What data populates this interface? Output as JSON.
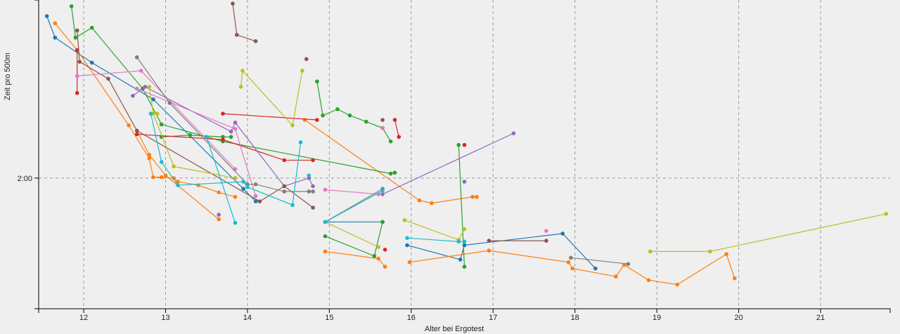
{
  "chart_data": {
    "type": "line",
    "xlabel": "Alter bei Ergotest",
    "ylabel": "Zeit pro 500m",
    "xlim": [
      11.45,
      21.85
    ],
    "ylim": [
      105.4,
      139.9
    ],
    "x_ticks": [
      12,
      13,
      14,
      15,
      16,
      17,
      18,
      19,
      20,
      21
    ],
    "y_ticks": [
      {
        "value": 120,
        "label": "2:00"
      }
    ],
    "grid": "dashed at tick positions",
    "series": [
      {
        "color": "#1f77b4",
        "points": [
          [
            11.55,
            138.1
          ],
          [
            11.65,
            135.7
          ],
          [
            12.1,
            132.9
          ],
          [
            12.85,
            128.8
          ],
          [
            13.95,
            118.8
          ],
          [
            14.1,
            117.4
          ]
        ]
      },
      {
        "color": "#1f77b4",
        "points": [
          [
            14.95,
            115.1
          ],
          [
            15.65,
            115.1
          ]
        ]
      },
      {
        "color": "#1f77b4",
        "points": [
          [
            15.95,
            112.5
          ],
          [
            16.6,
            110.9
          ],
          [
            16.65,
            112.5
          ],
          [
            17.85,
            113.8
          ],
          [
            18.25,
            109.9
          ]
        ]
      },
      {
        "color": "#ff7f0e",
        "points": [
          [
            11.65,
            137.3
          ],
          [
            11.92,
            134.3
          ],
          [
            12.55,
            125.9
          ],
          [
            12.8,
            122.2
          ],
          [
            12.85,
            120.1
          ],
          [
            12.95,
            120.1
          ],
          [
            13.1,
            120.0
          ],
          [
            13.15,
            119.6
          ],
          [
            13.4,
            119.2
          ],
          [
            13.65,
            118.4
          ],
          [
            13.85,
            117.9
          ]
        ]
      },
      {
        "color": "#ff7f0e",
        "points": [
          [
            12.65,
            125.3
          ],
          [
            12.8,
            122.6
          ],
          [
            13.0,
            120.3
          ],
          [
            13.65,
            115.4
          ]
        ]
      },
      {
        "color": "#ff7f0e",
        "points": [
          [
            14.7,
            126.5
          ],
          [
            16.1,
            117.5
          ],
          [
            16.25,
            117.2
          ],
          [
            16.75,
            117.9
          ],
          [
            16.8,
            117.9
          ]
        ]
      },
      {
        "color": "#ff7f0e",
        "points": [
          [
            14.95,
            111.8
          ],
          [
            15.6,
            111.0
          ],
          [
            15.68,
            110.1
          ]
        ]
      },
      {
        "color": "#ff7f0e",
        "points": [
          [
            15.98,
            110.6
          ],
          [
            16.95,
            111.9
          ],
          [
            17.92,
            110.6
          ],
          [
            17.97,
            109.9
          ],
          [
            18.5,
            109.0
          ],
          [
            18.6,
            110.3
          ],
          [
            18.9,
            108.6
          ],
          [
            19.25,
            108.1
          ],
          [
            19.85,
            111.5
          ],
          [
            19.95,
            108.8
          ]
        ]
      },
      {
        "color": "#2ca02c",
        "points": [
          [
            11.85,
            139.2
          ],
          [
            11.9,
            135.7
          ],
          [
            12.1,
            136.8
          ],
          [
            12.72,
            130.0
          ],
          [
            12.95,
            126.0
          ],
          [
            13.7,
            124.1
          ],
          [
            15.75,
            120.5
          ],
          [
            15.8,
            120.6
          ]
        ]
      },
      {
        "color": "#2ca02c",
        "points": [
          [
            12.95,
            124.6
          ],
          [
            13.3,
            124.8
          ],
          [
            13.7,
            124.6
          ],
          [
            13.8,
            124.6
          ]
        ]
      },
      {
        "color": "#2ca02c",
        "points": [
          [
            14.85,
            130.8
          ],
          [
            14.92,
            127.0
          ],
          [
            15.1,
            127.7
          ],
          [
            15.25,
            127.0
          ],
          [
            15.45,
            126.3
          ],
          [
            15.65,
            125.6
          ],
          [
            15.75,
            124.1
          ]
        ]
      },
      {
        "color": "#2ca02c",
        "points": [
          [
            14.95,
            113.5
          ],
          [
            15.55,
            111.3
          ],
          [
            15.65,
            115.1
          ]
        ]
      },
      {
        "color": "#2ca02c",
        "points": [
          [
            16.58,
            123.7
          ],
          [
            16.65,
            110.1
          ]
        ]
      },
      {
        "color": "#d62728",
        "points": [
          [
            11.92,
            134.3
          ],
          [
            11.92,
            129.5
          ]
        ]
      },
      {
        "color": "#d62728",
        "points": [
          [
            12.65,
            124.9
          ],
          [
            13.7,
            124.3
          ],
          [
            14.45,
            122.0
          ],
          [
            14.8,
            122.0
          ]
        ]
      },
      {
        "color": "#d62728",
        "points": [
          [
            13.7,
            127.2
          ],
          [
            14.85,
            126.5
          ]
        ]
      },
      {
        "color": "#d62728",
        "points": [
          [
            15.8,
            126.5
          ],
          [
            15.85,
            124.6
          ]
        ]
      },
      {
        "color": "#d62728",
        "points": [
          [
            15.68,
            112.0
          ]
        ]
      },
      {
        "color": "#d62728",
        "points": [
          [
            16.65,
            123.7
          ]
        ]
      },
      {
        "color": "#9467bd",
        "points": [
          [
            12.6,
            129.2
          ],
          [
            12.75,
            130.2
          ],
          [
            13.8,
            125.2
          ],
          [
            13.85,
            126.2
          ],
          [
            14.45,
            119.1
          ],
          [
            14.75,
            120.0
          ],
          [
            14.8,
            119.1
          ]
        ]
      },
      {
        "color": "#9467bd",
        "points": [
          [
            15.65,
            118.2
          ],
          [
            17.25,
            125.0
          ]
        ]
      },
      {
        "color": "#9467bd",
        "points": [
          [
            13.65,
            115.9
          ]
        ]
      },
      {
        "color": "#9467bd",
        "points": [
          [
            16.65,
            119.6
          ]
        ]
      },
      {
        "color": "#8c564b",
        "points": [
          [
            11.92,
            136.5
          ],
          [
            11.95,
            133.0
          ],
          [
            12.3,
            131.1
          ],
          [
            12.65,
            125.3
          ],
          [
            14.15,
            117.4
          ],
          [
            14.45,
            119.1
          ],
          [
            14.8,
            116.7
          ]
        ]
      },
      {
        "color": "#8c564b",
        "points": [
          [
            13.82,
            139.5
          ],
          [
            13.87,
            136.0
          ],
          [
            14.1,
            135.3
          ]
        ]
      },
      {
        "color": "#8c564b",
        "points": [
          [
            14.72,
            133.3
          ]
        ]
      },
      {
        "color": "#8c564b",
        "points": [
          [
            15.65,
            126.5
          ]
        ]
      },
      {
        "color": "#8c564b",
        "points": [
          [
            16.95,
            113.0
          ],
          [
            17.65,
            113.0
          ]
        ]
      },
      {
        "color": "#e377c2",
        "points": [
          [
            11.92,
            131.4
          ],
          [
            12.7,
            132.0
          ],
          [
            13.85,
            121.0
          ]
        ]
      },
      {
        "color": "#e377c2",
        "points": [
          [
            12.65,
            130.0
          ],
          [
            13.85,
            125.5
          ],
          [
            14.1,
            118.0
          ]
        ]
      },
      {
        "color": "#e377c2",
        "points": [
          [
            14.95,
            118.7
          ],
          [
            15.6,
            118.2
          ]
        ]
      },
      {
        "color": "#e377c2",
        "points": [
          [
            15.65,
            125.6
          ]
        ]
      },
      {
        "color": "#e377c2",
        "points": [
          [
            17.65,
            114.1
          ]
        ]
      },
      {
        "color": "#7f7f7f",
        "points": [
          [
            12.65,
            133.5
          ],
          [
            13.05,
            128.4
          ],
          [
            14.0,
            119.3
          ],
          [
            14.1,
            119.3
          ],
          [
            14.45,
            118.5
          ],
          [
            14.75,
            118.5
          ],
          [
            14.8,
            118.5
          ]
        ]
      },
      {
        "color": "#7f7f7f",
        "points": [
          [
            14.95,
            115.1
          ],
          [
            15.65,
            118.8
          ]
        ]
      },
      {
        "color": "#7f7f7f",
        "points": [
          [
            17.95,
            111.1
          ],
          [
            18.65,
            110.4
          ]
        ]
      },
      {
        "color": "#bcbd22",
        "points": [
          [
            12.8,
            130.2
          ],
          [
            12.85,
            127.2
          ],
          [
            13.1,
            121.3
          ],
          [
            13.85,
            120.0
          ]
        ]
      },
      {
        "color": "#bcbd22",
        "points": [
          [
            13.92,
            130.2
          ],
          [
            13.94,
            132.0
          ],
          [
            14.55,
            125.9
          ],
          [
            14.67,
            132.0
          ]
        ]
      },
      {
        "color": "#bcbd22",
        "points": [
          [
            14.95,
            115.1
          ],
          [
            15.6,
            112.3
          ]
        ]
      },
      {
        "color": "#bcbd22",
        "points": [
          [
            15.92,
            115.3
          ],
          [
            16.58,
            113.1
          ],
          [
            16.65,
            114.3
          ]
        ]
      },
      {
        "color": "#bcbd22",
        "points": [
          [
            18.92,
            111.8
          ],
          [
            19.65,
            111.8
          ],
          [
            21.8,
            116.0
          ]
        ]
      },
      {
        "color": "#bcbd22",
        "points": [
          [
            12.9,
            127.2
          ]
        ]
      },
      {
        "color": "#17becf",
        "points": [
          [
            12.82,
            127.2
          ],
          [
            12.95,
            121.8
          ],
          [
            13.15,
            119.2
          ],
          [
            13.95,
            119.6
          ],
          [
            14.0,
            119.0
          ],
          [
            14.55,
            117.0
          ],
          [
            14.65,
            124.0
          ]
        ]
      },
      {
        "color": "#17becf",
        "points": [
          [
            13.5,
            124.6
          ],
          [
            13.85,
            115.0
          ]
        ]
      },
      {
        "color": "#17becf",
        "points": [
          [
            14.95,
            115.1
          ],
          [
            15.65,
            118.6
          ]
        ]
      },
      {
        "color": "#17becf",
        "points": [
          [
            15.95,
            113.3
          ],
          [
            16.58,
            112.9
          ],
          [
            16.65,
            112.9
          ]
        ]
      },
      {
        "color": "#17becf",
        "points": [
          [
            14.75,
            120.3
          ]
        ]
      }
    ]
  }
}
